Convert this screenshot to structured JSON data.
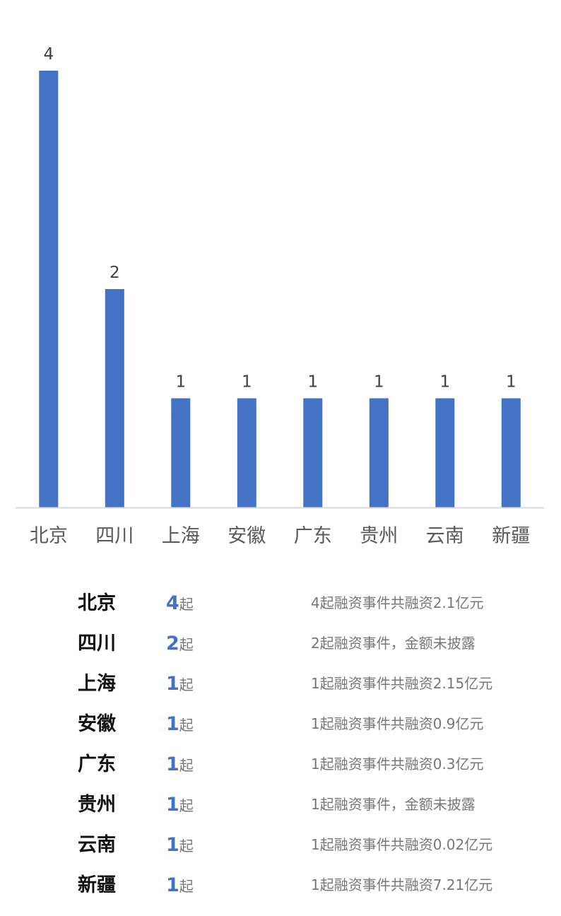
{
  "chart_data": {
    "type": "bar",
    "categories": [
      "北京",
      "四川",
      "上海",
      "安徽",
      "广东",
      "贵州",
      "云南",
      "新疆"
    ],
    "values": [
      4,
      2,
      1,
      1,
      1,
      1,
      1,
      1
    ],
    "title": "",
    "xlabel": "",
    "ylabel": "",
    "ylim": [
      0,
      4
    ],
    "grid": false,
    "legend": "none",
    "bar_color": "#4472C4",
    "axis_color": "#D9D9D9",
    "data_labels": true
  },
  "colors": {
    "count_accent": "#4472C4",
    "desc_text": "#777777",
    "region_text": "#111111"
  },
  "summary": {
    "unit": "起",
    "rows": [
      {
        "region": "北京",
        "count": "4",
        "desc": "4起融资事件共融资2.1亿元"
      },
      {
        "region": "四川",
        "count": "2",
        "desc": "2起融资事件，金额未披露"
      },
      {
        "region": "上海",
        "count": "1",
        "desc": "1起融资事件共融资2.15亿元"
      },
      {
        "region": "安徽",
        "count": "1",
        "desc": "1起融资事件共融资0.9亿元"
      },
      {
        "region": "广东",
        "count": "1",
        "desc": "1起融资事件共融资0.3亿元"
      },
      {
        "region": "贵州",
        "count": "1",
        "desc": "1起融资事件，金额未披露"
      },
      {
        "region": "云南",
        "count": "1",
        "desc": "1起融资事件共融资0.02亿元"
      },
      {
        "region": "新疆",
        "count": "1",
        "desc": "1起融资事件共融资7.21亿元"
      }
    ]
  }
}
